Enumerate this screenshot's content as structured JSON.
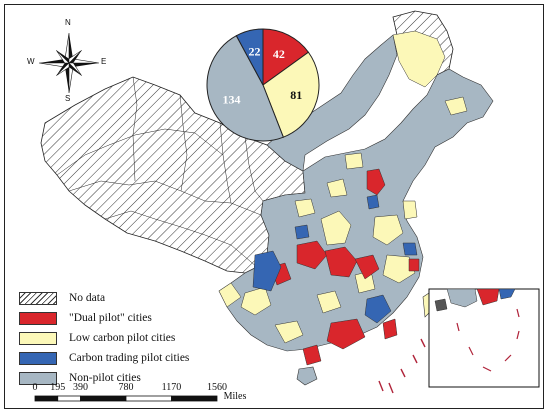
{
  "compass": {
    "north": "N",
    "south": "S",
    "east": "E",
    "west": "W"
  },
  "colors": {
    "dual_pilot": "#d9262c",
    "low_carbon": "#fcf8b8",
    "carbon_trading": "#3566b3",
    "non_pilot": "#a7b7c3",
    "no_data_hatch": "#333333"
  },
  "pie": {
    "slices": [
      {
        "category": "\"Dual pilot\" cities",
        "value": 42
      },
      {
        "category": "Low carbon pilot cities",
        "value": 81
      },
      {
        "category": "Non-pilot cities",
        "value": 134
      },
      {
        "category": "Carbon trading pilot cities",
        "value": 22
      }
    ]
  },
  "legend": {
    "items": [
      {
        "label": "No data",
        "style": "hatch"
      },
      {
        "label": "\"Dual pilot\" cities",
        "style": "dual_pilot"
      },
      {
        "label": "Low carbon pilot cities",
        "style": "low_carbon"
      },
      {
        "label": "Carbon trading pilot cities",
        "style": "carbon_trading"
      },
      {
        "label": "Non-pilot cities",
        "style": "non_pilot"
      }
    ]
  },
  "scale_bar": {
    "ticks": [
      "0",
      "195",
      "390",
      "780",
      "1170",
      "1560"
    ],
    "tick_values": [
      0,
      195,
      390,
      780,
      1170,
      1560
    ],
    "unit": "Miles"
  }
}
